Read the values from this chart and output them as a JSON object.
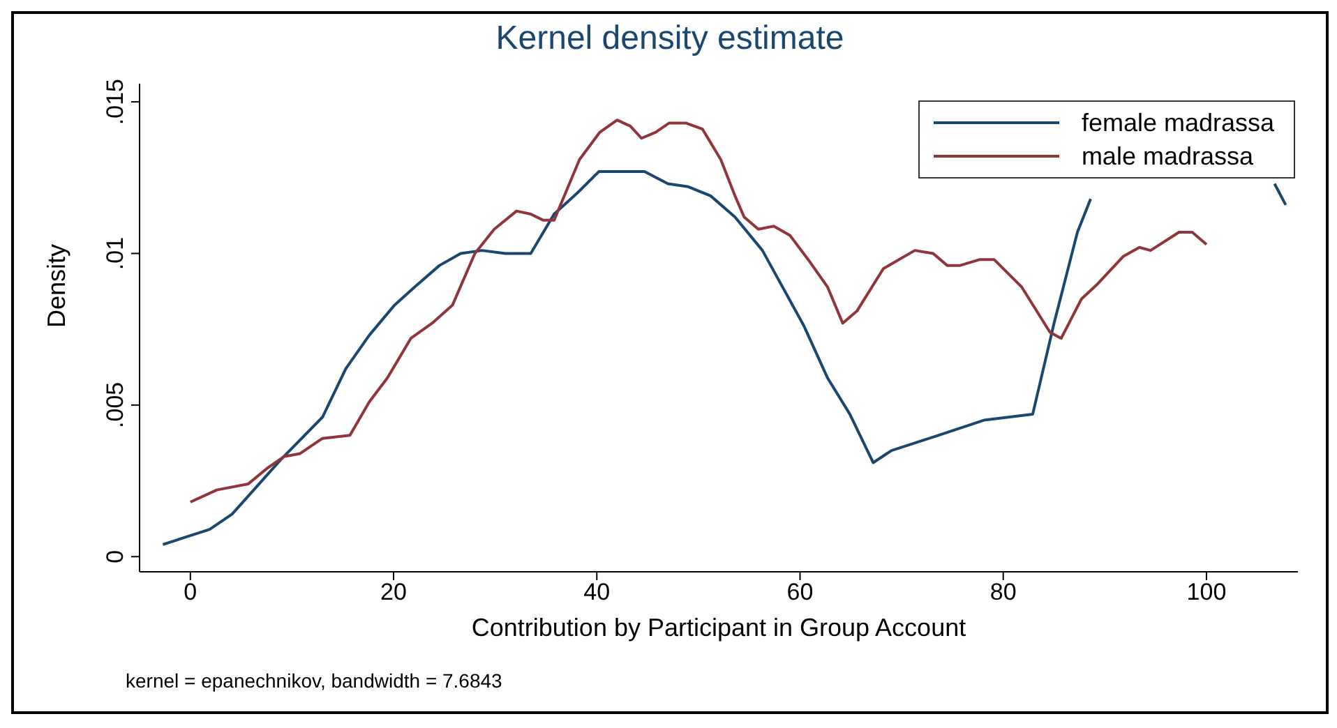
{
  "chart_data": {
    "type": "line",
    "title": "Kernel density estimate",
    "xlabel": "Contribution by Participant in Group Account",
    "ylabel": "Density",
    "xlim": [
      -5,
      109
    ],
    "xticks": [
      0,
      20,
      40,
      60,
      80,
      100
    ],
    "ylim": [
      -0.0005,
      0.0156
    ],
    "yticks": [
      {
        "value": 0,
        "label": "0"
      },
      {
        "value": 0.005,
        "label": ".005"
      },
      {
        "value": 0.01,
        "label": ".01"
      },
      {
        "value": 0.015,
        "label": ".015"
      }
    ],
    "legend": "top right",
    "marker": "none",
    "line_style": "solid",
    "annotations": [
      "kernel = epanechnikov, bandwidth = 7.6843"
    ],
    "series": [
      {
        "name": "female madrassa",
        "color": "#1a476f",
        "x": [
          -2.7,
          1.9,
          4.1,
          5.7,
          8.9,
          13,
          15.3,
          17.6,
          20.1,
          22.1,
          24.5,
          26.6,
          28.7,
          31,
          33.5,
          35.8,
          38.1,
          40.2,
          44.7,
          47,
          49,
          51.2,
          53.6,
          56.3,
          60.4,
          62.7,
          64.9,
          67.2,
          69,
          73.6,
          78.1,
          82.9,
          85,
          87.3,
          88.6,
          97,
          106.7,
          107.8
        ],
        "values": [
          0.0004,
          0.0009,
          0.0014,
          0.002,
          0.0032,
          0.0046,
          0.0062,
          0.0073,
          0.0083,
          0.0089,
          0.0096,
          0.01,
          0.0101,
          0.01,
          0.01,
          0.0113,
          0.012,
          0.0127,
          0.0127,
          0.0123,
          0.0122,
          0.0119,
          0.0112,
          0.0101,
          0.0076,
          0.0059,
          0.0047,
          0.0031,
          0.0035,
          0.004,
          0.0045,
          0.0047,
          0.0077,
          0.0107,
          0.0118,
          null,
          0.0123,
          0.0116
        ]
      },
      {
        "name": "male madrassa",
        "color": "#90353b",
        "x": [
          0,
          2.6,
          5.7,
          7.5,
          9.2,
          10.8,
          13,
          15.7,
          17.6,
          19.4,
          21.7,
          23.8,
          25.8,
          28,
          29.9,
          32.1,
          33.5,
          34.7,
          35.8,
          38.3,
          40.3,
          42,
          43.3,
          44.4,
          45.8,
          47.1,
          48.8,
          50.4,
          52.2,
          53.6,
          54.5,
          55.9,
          57.4,
          59,
          60.8,
          62.7,
          64.2,
          65.6,
          68.2,
          71.3,
          73.1,
          74.5,
          75.7,
          77.7,
          79.1,
          81.8,
          84.6,
          85.7,
          87.7,
          89.3,
          91.8,
          93.4,
          94.5,
          97.3,
          98.6,
          100
        ],
        "values": [
          0.0018,
          0.0022,
          0.0024,
          0.0029,
          0.0033,
          0.0034,
          0.0039,
          0.004,
          0.0051,
          0.0059,
          0.0072,
          0.0077,
          0.0083,
          0.01,
          0.0108,
          0.0114,
          0.0113,
          0.0111,
          0.0111,
          0.0131,
          0.014,
          0.0144,
          0.0142,
          0.0138,
          0.014,
          0.0143,
          0.0143,
          0.0141,
          0.0131,
          0.0119,
          0.0112,
          0.0108,
          0.0109,
          0.0106,
          0.0098,
          0.0089,
          0.0077,
          0.0081,
          0.0095,
          0.0101,
          0.01,
          0.0096,
          0.0096,
          0.0098,
          0.0098,
          0.0089,
          0.0074,
          0.0072,
          0.0085,
          0.009,
          0.0099,
          0.0102,
          0.0101,
          0.0107,
          0.0107,
          0.0103
        ]
      }
    ]
  }
}
